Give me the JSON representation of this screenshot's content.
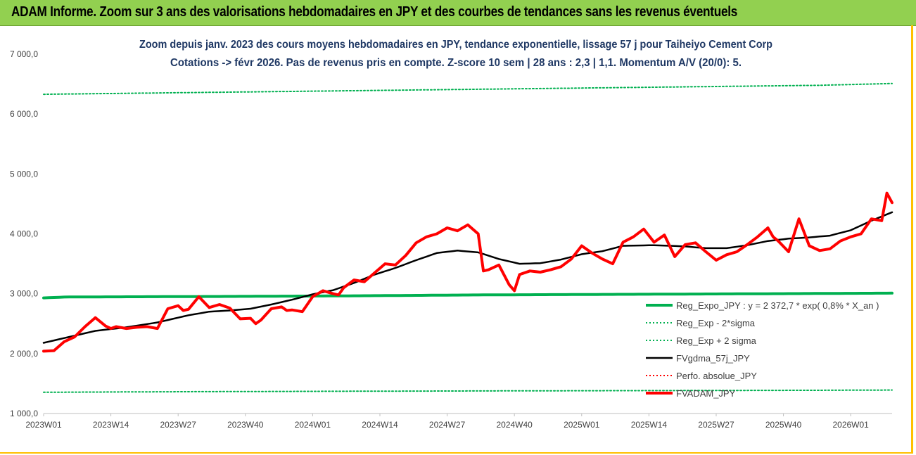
{
  "banner": {
    "title": "ADAM Informe. Zoom sur 3 ans des valorisations hebdomadaires en JPY et des courbes de tendances sans les revenus éventuels"
  },
  "colors": {
    "banner_bg": "#92d050",
    "reg_green": "#00b050",
    "reg_dotted_green": "#00b050",
    "gdma_black": "#000000",
    "fvadam_red": "#ff0000",
    "perfo_red": "#ff0000",
    "subtitle_blue": "#1f3864",
    "border_orange": "#ffc000"
  },
  "chart_data": {
    "type": "line",
    "title_line1": "Zoom depuis janv. 2023 des cours moyens hebdomadaires en JPY, tendance exponentielle, lissage 57 j pour Taiheiyo Cement Corp",
    "title_line2": "Cotations -> févr 2026.  Pas de revenus pris en compte. Z-score 10 sem | 28 ans : 2,3 | 1,1. Momentum A/V (20/0): 5.",
    "ylim": [
      1000,
      7000
    ],
    "y_ticks": [
      "1 000,0",
      "2 000,0",
      "3 000,0",
      "4 000,0",
      "5 000,0",
      "6 000,0",
      "7 000,0"
    ],
    "y_tick_values": [
      1000,
      2000,
      3000,
      4000,
      5000,
      6000,
      7000
    ],
    "x_ticks": [
      "2023W01",
      "2023W14",
      "2023W27",
      "2023W40",
      "2024W01",
      "2024W14",
      "2024W27",
      "2024W40",
      "2025W01",
      "2025W14",
      "2025W27",
      "2025W40",
      "2026W01"
    ],
    "x_tick_index": [
      0,
      13,
      26,
      39,
      52,
      65,
      78,
      91,
      104,
      117,
      130,
      143,
      156
    ],
    "n_weeks": 165,
    "legend_placement": "bottom-right",
    "series": [
      {
        "name": "Reg_Expo_JPY : y = 2 372,7 * exp( 0,8% * X_an )",
        "style": "solid-thick",
        "color": "#00b050",
        "anchors_x": [
          0,
          4,
          36,
          60,
          84,
          112,
          140,
          164
        ],
        "anchors_y": [
          2930,
          2945,
          2955,
          2965,
          2980,
          2990,
          3000,
          3010
        ]
      },
      {
        "name": "Reg_Exp - 2*sigma",
        "style": "dotted",
        "color": "#00b050",
        "anchors_x": [
          0,
          30,
          60,
          90,
          120,
          150,
          164
        ],
        "anchors_y": [
          1355,
          1365,
          1372,
          1378,
          1383,
          1388,
          1392
        ]
      },
      {
        "name": "Reg_Exp + 2 sigma",
        "style": "dotted",
        "color": "#00b050",
        "anchors_x": [
          0,
          10,
          30,
          50,
          70,
          90,
          110,
          130,
          150,
          164
        ],
        "anchors_y": [
          6330,
          6340,
          6360,
          6380,
          6400,
          6420,
          6440,
          6460,
          6480,
          6510
        ]
      },
      {
        "name": "FVgdma_57j_JPY",
        "style": "solid",
        "color": "#000000",
        "anchors_x": [
          0,
          6,
          10,
          16,
          22,
          28,
          32,
          36,
          40,
          44,
          48,
          52,
          56,
          60,
          64,
          68,
          72,
          76,
          80,
          84,
          88,
          92,
          96,
          100,
          104,
          108,
          112,
          118,
          124,
          128,
          132,
          136,
          140,
          144,
          148,
          152,
          156,
          160,
          164
        ],
        "anchors_y": [
          2180,
          2300,
          2380,
          2440,
          2520,
          2640,
          2700,
          2720,
          2750,
          2820,
          2900,
          2990,
          3060,
          3180,
          3320,
          3430,
          3560,
          3680,
          3720,
          3690,
          3580,
          3500,
          3510,
          3570,
          3660,
          3710,
          3800,
          3810,
          3790,
          3760,
          3760,
          3810,
          3880,
          3920,
          3940,
          3970,
          4060,
          4220,
          4360
        ]
      },
      {
        "name": "Perfo. absolue_JPY",
        "style": "dotted",
        "color": "#ff0000",
        "anchors_x": [],
        "anchors_y": []
      },
      {
        "name": "FVADAM_JPY",
        "style": "solid-thick",
        "color": "#ff0000",
        "anchors_x": [
          0,
          2,
          4,
          6,
          8,
          10,
          12,
          13,
          14,
          16,
          18,
          20,
          22,
          24,
          26,
          27,
          28,
          30,
          32,
          34,
          36,
          38,
          40,
          41,
          42,
          44,
          46,
          47,
          48,
          50,
          52,
          54,
          56,
          57,
          58,
          60,
          62,
          64,
          66,
          68,
          70,
          72,
          74,
          76,
          78,
          80,
          82,
          84,
          85,
          86,
          88,
          90,
          91,
          92,
          94,
          96,
          98,
          100,
          102,
          104,
          106,
          108,
          110,
          112,
          114,
          116,
          118,
          120,
          122,
          124,
          126,
          128,
          130,
          132,
          134,
          136,
          138,
          140,
          141,
          142,
          144,
          146,
          148,
          150,
          152,
          154,
          156,
          158,
          160,
          162,
          163,
          164
        ],
        "anchors_y": [
          2040,
          2050,
          2200,
          2280,
          2450,
          2600,
          2460,
          2420,
          2450,
          2420,
          2440,
          2450,
          2420,
          2750,
          2800,
          2720,
          2740,
          2950,
          2770,
          2820,
          2760,
          2580,
          2590,
          2500,
          2560,
          2750,
          2780,
          2720,
          2730,
          2700,
          2950,
          3050,
          3000,
          2980,
          3100,
          3230,
          3200,
          3350,
          3500,
          3480,
          3640,
          3850,
          3950,
          4000,
          4100,
          4050,
          4150,
          4000,
          3380,
          3400,
          3480,
          3150,
          3050,
          3320,
          3380,
          3360,
          3400,
          3450,
          3580,
          3800,
          3680,
          3580,
          3500,
          3860,
          3950,
          4080,
          3860,
          3980,
          3620,
          3820,
          3850,
          3700,
          3560,
          3650,
          3700,
          3820,
          3950,
          4100,
          3950,
          3880,
          3700,
          4250,
          3800,
          3720,
          3750,
          3880,
          3950,
          4000,
          4250,
          4220,
          4680,
          4520
        ]
      }
    ]
  }
}
